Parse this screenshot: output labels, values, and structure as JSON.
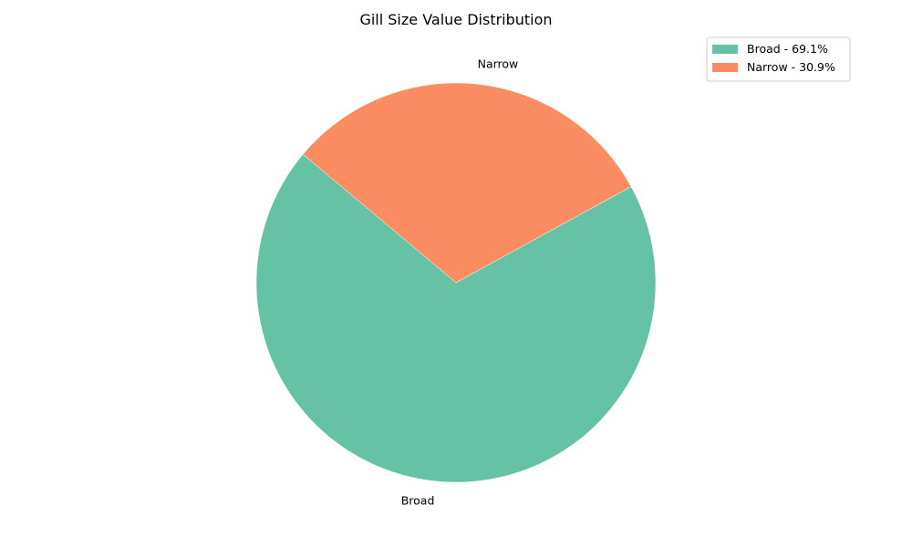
{
  "chart_data": {
    "type": "pie",
    "title": "Gill Size Value Distribution",
    "slices": [
      {
        "label": "Broad",
        "value": 69.1,
        "legend": "Broad - 69.1%",
        "color": "#66c2a5"
      },
      {
        "label": "Narrow",
        "value": 30.9,
        "legend": "Narrow - 30.9%",
        "color": "#fc8d62"
      }
    ],
    "start_angle_deg": 140,
    "direction": "counterclockwise",
    "legend_position": "top-right"
  }
}
